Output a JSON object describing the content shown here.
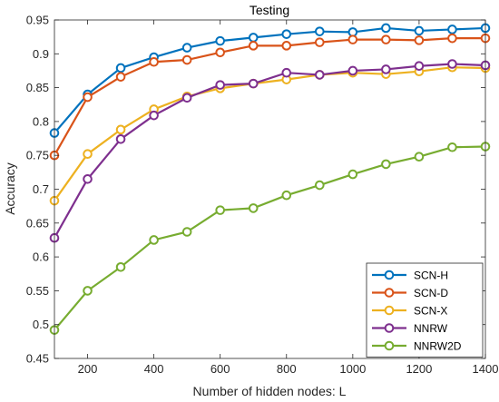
{
  "chart_data": {
    "type": "line",
    "title": "Testing",
    "xlabel": "Number of hidden nodes: L",
    "ylabel": "Accuracy",
    "xlim": [
      100,
      1400
    ],
    "ylim": [
      0.45,
      0.95
    ],
    "xticks": [
      200,
      400,
      600,
      800,
      1000,
      1200,
      1400
    ],
    "yticks": [
      0.45,
      0.5,
      0.55,
      0.6,
      0.65,
      0.7,
      0.75,
      0.8,
      0.85,
      0.9,
      0.95
    ],
    "ytick_labels": [
      "0.45",
      "0.5",
      "0.55",
      "0.6",
      "0.65",
      "0.7",
      "0.75",
      "0.8",
      "0.85",
      "0.9",
      "0.95"
    ],
    "grid": false,
    "legend_position": "bottom-right",
    "x": [
      100,
      200,
      300,
      400,
      500,
      600,
      700,
      800,
      900,
      1000,
      1100,
      1200,
      1300,
      1400
    ],
    "series": [
      {
        "name": "SCN-H",
        "color": "#0072BD",
        "values": [
          0.783,
          0.84,
          0.879,
          0.895,
          0.909,
          0.919,
          0.924,
          0.929,
          0.933,
          0.932,
          0.938,
          0.934,
          0.936,
          0.938
        ]
      },
      {
        "name": "SCN-D",
        "color": "#D95319",
        "values": [
          0.75,
          0.836,
          0.866,
          0.888,
          0.891,
          0.902,
          0.912,
          0.912,
          0.917,
          0.921,
          0.921,
          0.92,
          0.923,
          0.923
        ]
      },
      {
        "name": "SCN-X",
        "color": "#EDB120",
        "values": [
          0.683,
          0.752,
          0.788,
          0.818,
          0.837,
          0.849,
          0.856,
          0.862,
          0.869,
          0.872,
          0.87,
          0.874,
          0.88,
          0.879
        ]
      },
      {
        "name": "NNRW",
        "color": "#7E2F8E",
        "values": [
          0.628,
          0.715,
          0.774,
          0.809,
          0.835,
          0.854,
          0.856,
          0.872,
          0.869,
          0.875,
          0.877,
          0.882,
          0.885,
          0.883
        ]
      },
      {
        "name": "NNRW2D",
        "color": "#77AC30",
        "values": [
          0.492,
          0.55,
          0.585,
          0.625,
          0.637,
          0.669,
          0.672,
          0.691,
          0.706,
          0.722,
          0.737,
          0.748,
          0.762,
          0.763
        ]
      }
    ]
  }
}
